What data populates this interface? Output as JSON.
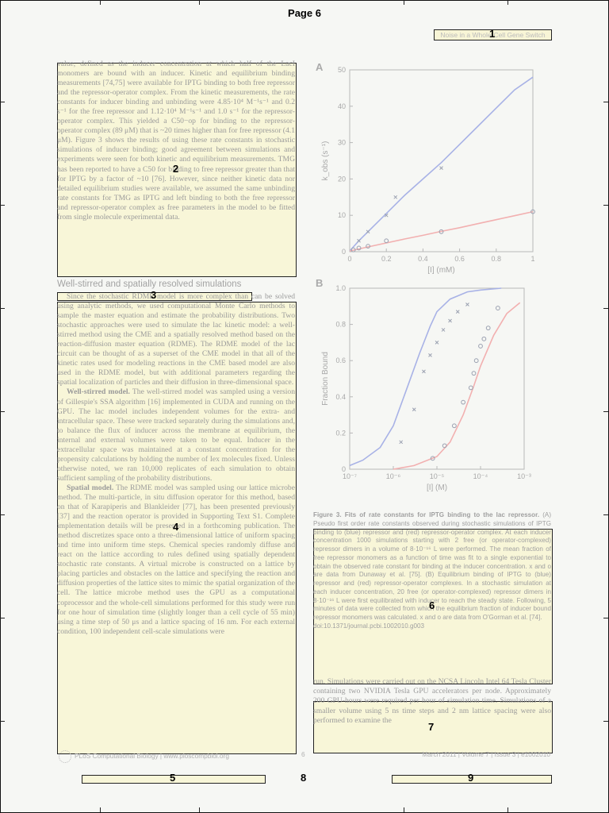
{
  "page_label": "Page 6",
  "running_head": "Noise in a Whole-Cell Gene Switch",
  "box_numbers": [
    "1",
    "2",
    "3",
    "4",
    "5",
    "6",
    "7",
    "8",
    "9"
  ],
  "left_column": {
    "para1": "value, defined as the inducer concentration at which half of the LacI monomers are bound with an inducer. Kinetic and equilibrium binding measurements [74,75] were available for IPTG binding to both free repressor and the repressor-operator complex. From the kinetic measurements, the rate constants for inducer binding and unbinding were 4.85·10⁴ M⁻¹s⁻¹ and 0.2 s⁻¹ for the free repressor and 1.12·10⁴ M⁻¹s⁻¹ and 1.0 s⁻¹ for the repressor-operator complex. This yielded a C50−op for binding to the repressor-operator complex (89 μM) that is ~20 times higher than for free repressor (4.1 μM). Figure 3 shows the results of using these rate constants in stochastic simulations of inducer binding; good agreement between simulations and experiments were seen for both kinetic and equilibrium measurements. TMG has been reported to have a C50 for binding to free repressor greater than that for IPTG by a factor of ~10 [76]. However, since neither kinetic data nor detailed equilibrium studies were available, we assumed the same unbinding rate constants for TMG as IPTG and left binding to both the free repressor and repressor-operator complex as free parameters in the model to be fitted from single molecule experimental data.",
    "heading": "Well-stirred and spatially resolved simulations",
    "para2": "Since the stochastic RDME model is more complex than can be solved using analytic methods, we used computational Monte Carlo methods to sample the master equation and estimate the probability distributions. Two stochastic approaches were used to simulate the lac kinetic model: a well-stirred method using the CME and a spatially resolved method based on the reaction-diffusion master equation (RDME). The RDME model of the lac circuit can be thought of as a superset of the CME model in that all of the kinetic rates used for modeling reactions in the CME based model are also used in the RDME model, but with additional parameters regarding the spatial localization of particles and their diffusion in three-dimensional space.",
    "para3_title": "Well-stirred model.",
    "para3": "The well-stirred model was sampled using a version of Gillespie's SSA algorithm [16] implemented in CUDA and running on the GPU. The lac model includes independent volumes for the extra- and intracellular space. These were tracked separately during the simulations and, to balance the flux of inducer across the membrane at equilibrium, the internal and external volumes were taken to be equal. Inducer in the extracellular space was maintained at a constant concentration for the propensity calculations by holding the number of Iex molecules fixed. Unless otherwise noted, we ran 10,000 replicates of each simulation to obtain sufficient sampling of the probability distributions.",
    "para4_title": "Spatial model.",
    "para4": "The RDME model was sampled using our lattice microbe method. The multi-particle, in situ diffusion operator for this method, based on that of Karapiperis and Blankleider [77], has been presented previously [37] and the reaction operator is provided in Supporting Text S1. Complete implementation details will be presented in a forthcoming publication. The method discretizes space onto a three-dimensional lattice of uniform spacing and time into uniform time steps. Chemical species randomly diffuse and react on the lattice according to rules defined using spatially dependent stochastic rate constants. A virtual microbe is constructed on a lattice by placing particles and obstacles on the lattice and specifying the reaction and diffusion properties of the lattice sites to mimic the spatial organization of the cell. The lattice microbe method uses the GPU as a computational coprocessor and the whole-cell simulations performed for this study were run for one hour of simulation time (slightly longer than a cell cycle of 55 min) using a time step of 50 μs and a lattice spacing of 16 nm. For each external condition, 100 independent cell-scale simulations were"
  },
  "figure_caption": {
    "bold": "Figure 3. Fits of rate constants for IPTG binding to the lac repressor.",
    "text": "(A) Pseudo first order rate constants observed during stochastic simulations of IPTG binding to (blue) repressor and (red) repressor-operator complex. At each inducer concentration 1000 simulations starting with 2 free (or operator-complexed) repressor dimers in a volume of 8·10⁻¹⁶ L were performed. The mean fraction of free repressor monomers as a function of time was fit to a single exponential to obtain the observed rate constant for binding at the inducer concentration. x and o are data from Dunaway et al. [75]. (B) Equilibrium binding of IPTG to (blue) repressor and (red) repressor-operator complexes. In a stochastic simulation at each inducer concentration, 20 free (or operator-complexed) repressor dimers in 8·10⁻¹⁶ L were first equilibrated with inducer to reach the steady state. Following, 5 minutes of data were collected from which the equilibrium fraction of inducer bound repressor monomers was calculated. x and o are data from O'Gorman et al. [74].",
    "doi": "doi:10.1371/journal.pcbi.1002010.g003"
  },
  "right_text": "run. Simulations were carried out on the NCSA Lincoln Intel 64 Tesla Cluster containing two NVIDIA Tesla GPU accelerators per node. Approximately 200 GPU-hours were required per hour of simulation time. Simulations of a smaller volume using 5 ns time steps and 2 nm lattice spacing were also performed to examine the",
  "footer": {
    "journal": "PLoS Computational Biology | www.ploscompbiol.org",
    "page": "6",
    "issue": "March 2011 | Volume 7 | Issue 3 | e1002010"
  },
  "chart_data": [
    {
      "type": "scatter",
      "panel": "A",
      "xlabel": "[I] (mM)",
      "ylabel": "k_obs (s⁻¹)",
      "xlim": [
        0,
        1
      ],
      "ylim": [
        0,
        50
      ],
      "xticks": [
        0,
        0.2,
        0.4,
        0.6,
        0.8,
        1
      ],
      "yticks": [
        0,
        10,
        20,
        30,
        40,
        50
      ],
      "x_tick_labels": [
        "0",
        "0.2",
        "0.4",
        "0.6",
        "0.8",
        "1"
      ],
      "y_tick_labels": [
        "0",
        "10",
        "20",
        "30",
        "40",
        "50"
      ],
      "series": [
        {
          "color": "#a8b2e6",
          "style": "line",
          "x": [
            0,
            0.05,
            0.1,
            0.2,
            0.3,
            0.4,
            0.5,
            0.6,
            0.7,
            0.8,
            0.9,
            1.0
          ],
          "y": [
            0.2,
            3,
            5.5,
            10.5,
            15.5,
            20,
            24.5,
            29.5,
            34.5,
            39.5,
            44.5,
            48
          ]
        },
        {
          "color": "#f2b0b0",
          "style": "line",
          "x": [
            0,
            0.1,
            0.2,
            0.3,
            0.4,
            0.5,
            0.6,
            0.7,
            0.8,
            0.9,
            1.0
          ],
          "y": [
            0.2,
            1.3,
            2.4,
            3.5,
            4.5,
            5.6,
            6.6,
            7.7,
            8.8,
            9.9,
            11
          ]
        },
        {
          "color": "#9aa0b0",
          "style": "x",
          "x": [
            0.05,
            0.1,
            0.2,
            0.25,
            0.5
          ],
          "y": [
            3,
            5.5,
            10,
            15,
            23
          ]
        },
        {
          "color": "#9aa0b0",
          "style": "o",
          "x": [
            0.02,
            0.05,
            0.1,
            0.2,
            0.5,
            1.0
          ],
          "y": [
            0.5,
            1,
            1.5,
            3,
            5.5,
            11
          ]
        }
      ]
    },
    {
      "type": "scatter",
      "panel": "B",
      "xlabel": "[I] (M)",
      "ylabel": "Fraction Bound",
      "xscale": "log",
      "xlim": [
        1e-07,
        0.001
      ],
      "ylim": [
        0,
        1
      ],
      "xticks": [
        1e-07,
        1e-06,
        1e-05,
        0.0001,
        0.001
      ],
      "yticks": [
        0,
        0.2,
        0.4,
        0.6,
        0.8,
        1
      ],
      "x_tick_labels": [
        "10⁻⁷",
        "10⁻⁶",
        "10⁻⁵",
        "10⁻⁴",
        "10⁻³"
      ],
      "y_tick_labels": [
        "0",
        "0.2",
        "0.4",
        "0.6",
        "0.8",
        "1.0"
      ],
      "series": [
        {
          "color": "#a8b2e6",
          "style": "line",
          "x": [
            1e-07,
            2e-07,
            5e-07,
            1e-06,
            2e-06,
            4e-06,
            7e-06,
            1e-05,
            2e-05,
            5e-05,
            0.0001,
            0.0003
          ],
          "y": [
            0.02,
            0.05,
            0.12,
            0.24,
            0.44,
            0.64,
            0.79,
            0.87,
            0.94,
            0.98,
            0.99,
            1.0
          ]
        },
        {
          "color": "#f2b0b0",
          "style": "line",
          "x": [
            1e-06,
            3e-06,
            1e-05,
            2e-05,
            4e-05,
            7e-05,
            0.0001,
            0.0002,
            0.0004,
            0.0008
          ],
          "y": [
            0.0,
            0.02,
            0.07,
            0.15,
            0.3,
            0.46,
            0.57,
            0.74,
            0.86,
            0.92
          ]
        },
        {
          "color": "#9aa0b0",
          "style": "x",
          "x": [
            1.5e-06,
            3e-06,
            5e-06,
            7e-06,
            1e-05,
            1.4e-05,
            2e-05,
            3e-05,
            5e-05
          ],
          "y": [
            0.15,
            0.33,
            0.54,
            0.63,
            0.7,
            0.77,
            0.82,
            0.87,
            0.91
          ]
        },
        {
          "color": "#9aa0b0",
          "style": "o",
          "x": [
            8e-06,
            1.5e-05,
            2.5e-05,
            4e-05,
            6e-05,
            7e-05,
            8e-05,
            0.0001,
            0.00012,
            0.00015,
            0.00025
          ],
          "y": [
            0.06,
            0.13,
            0.24,
            0.37,
            0.45,
            0.53,
            0.6,
            0.68,
            0.72,
            0.78,
            0.89
          ]
        }
      ]
    }
  ]
}
